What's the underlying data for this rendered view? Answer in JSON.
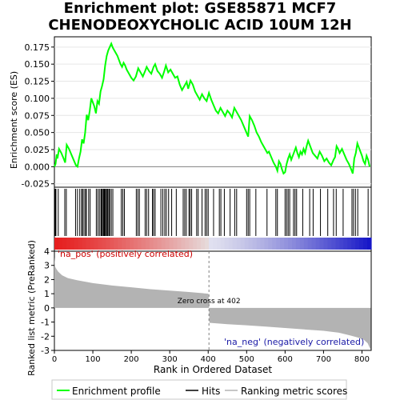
{
  "title_line1": "Enrichment plot: GSE85871 MCF7",
  "title_line2": "CHENODEOXYCHOLIC ACID 10UM 12H",
  "colors": {
    "es_line": "#00ff00",
    "hits": "#000000",
    "metric_fill": "#b3b3b3",
    "pos_label": "#cc0000",
    "neg_label": "#1a1aa6",
    "zero_line": "#808080"
  },
  "chart_data": [
    {
      "type": "line",
      "name": "enrichment-profile",
      "ylabel": "Enrichment score (ES)",
      "xlim": [
        0,
        824
      ],
      "ylim": [
        -0.03,
        0.19
      ],
      "yticks": [
        "0.175",
        "0.150",
        "0.125",
        "0.100",
        "0.075",
        "0.050",
        "0.025",
        "0.000",
        "-0.025"
      ],
      "ytick_values": [
        0.175,
        0.15,
        0.125,
        0.1,
        0.075,
        0.05,
        0.025,
        0.0,
        -0.025
      ],
      "points": [
        [
          0,
          0.0
        ],
        [
          3,
          0.004
        ],
        [
          6,
          0.018
        ],
        [
          8,
          0.012
        ],
        [
          12,
          0.026
        ],
        [
          18,
          0.02
        ],
        [
          24,
          0.012
        ],
        [
          28,
          0.006
        ],
        [
          32,
          0.032
        ],
        [
          38,
          0.026
        ],
        [
          44,
          0.018
        ],
        [
          50,
          0.01
        ],
        [
          56,
          0.002
        ],
        [
          60,
          0.0
        ],
        [
          64,
          0.012
        ],
        [
          68,
          0.022
        ],
        [
          72,
          0.04
        ],
        [
          76,
          0.034
        ],
        [
          80,
          0.05
        ],
        [
          84,
          0.076
        ],
        [
          88,
          0.068
        ],
        [
          92,
          0.082
        ],
        [
          96,
          0.1
        ],
        [
          100,
          0.094
        ],
        [
          104,
          0.088
        ],
        [
          108,
          0.078
        ],
        [
          112,
          0.096
        ],
        [
          116,
          0.092
        ],
        [
          120,
          0.11
        ],
        [
          124,
          0.118
        ],
        [
          128,
          0.128
        ],
        [
          132,
          0.148
        ],
        [
          136,
          0.162
        ],
        [
          140,
          0.17
        ],
        [
          144,
          0.175
        ],
        [
          148,
          0.18
        ],
        [
          152,
          0.174
        ],
        [
          156,
          0.17
        ],
        [
          160,
          0.166
        ],
        [
          164,
          0.162
        ],
        [
          168,
          0.156
        ],
        [
          172,
          0.15
        ],
        [
          176,
          0.146
        ],
        [
          180,
          0.152
        ],
        [
          184,
          0.148
        ],
        [
          188,
          0.142
        ],
        [
          192,
          0.138
        ],
        [
          196,
          0.134
        ],
        [
          200,
          0.13
        ],
        [
          206,
          0.126
        ],
        [
          212,
          0.132
        ],
        [
          218,
          0.144
        ],
        [
          224,
          0.138
        ],
        [
          230,
          0.132
        ],
        [
          236,
          0.14
        ],
        [
          240,
          0.146
        ],
        [
          246,
          0.14
        ],
        [
          252,
          0.136
        ],
        [
          258,
          0.146
        ],
        [
          262,
          0.15
        ],
        [
          268,
          0.14
        ],
        [
          274,
          0.136
        ],
        [
          280,
          0.13
        ],
        [
          286,
          0.14
        ],
        [
          290,
          0.148
        ],
        [
          296,
          0.138
        ],
        [
          302,
          0.142
        ],
        [
          308,
          0.136
        ],
        [
          314,
          0.13
        ],
        [
          320,
          0.132
        ],
        [
          326,
          0.12
        ],
        [
          332,
          0.112
        ],
        [
          338,
          0.118
        ],
        [
          344,
          0.124
        ],
        [
          348,
          0.114
        ],
        [
          354,
          0.126
        ],
        [
          360,
          0.12
        ],
        [
          366,
          0.11
        ],
        [
          372,
          0.104
        ],
        [
          378,
          0.098
        ],
        [
          384,
          0.106
        ],
        [
          390,
          0.1
        ],
        [
          396,
          0.096
        ],
        [
          402,
          0.108
        ],
        [
          408,
          0.098
        ],
        [
          414,
          0.09
        ],
        [
          420,
          0.082
        ],
        [
          426,
          0.078
        ],
        [
          432,
          0.086
        ],
        [
          438,
          0.08
        ],
        [
          444,
          0.074
        ],
        [
          450,
          0.082
        ],
        [
          456,
          0.078
        ],
        [
          462,
          0.072
        ],
        [
          468,
          0.086
        ],
        [
          474,
          0.08
        ],
        [
          480,
          0.074
        ],
        [
          486,
          0.068
        ],
        [
          492,
          0.06
        ],
        [
          498,
          0.052
        ],
        [
          504,
          0.044
        ],
        [
          508,
          0.074
        ],
        [
          514,
          0.068
        ],
        [
          520,
          0.06
        ],
        [
          526,
          0.05
        ],
        [
          532,
          0.044
        ],
        [
          538,
          0.036
        ],
        [
          544,
          0.03
        ],
        [
          550,
          0.024
        ],
        [
          554,
          0.02
        ],
        [
          558,
          0.022
        ],
        [
          564,
          0.014
        ],
        [
          570,
          0.006
        ],
        [
          576,
          0.0
        ],
        [
          580,
          -0.006
        ],
        [
          584,
          0.008
        ],
        [
          588,
          0.004
        ],
        [
          592,
          -0.004
        ],
        [
          596,
          -0.01
        ],
        [
          600,
          -0.008
        ],
        [
          604,
          0.004
        ],
        [
          608,
          0.012
        ],
        [
          612,
          0.018
        ],
        [
          616,
          0.01
        ],
        [
          620,
          0.016
        ],
        [
          624,
          0.022
        ],
        [
          628,
          0.028
        ],
        [
          632,
          0.02
        ],
        [
          636,
          0.014
        ],
        [
          640,
          0.022
        ],
        [
          644,
          0.018
        ],
        [
          648,
          0.026
        ],
        [
          652,
          0.02
        ],
        [
          656,
          0.03
        ],
        [
          660,
          0.038
        ],
        [
          664,
          0.032
        ],
        [
          668,
          0.026
        ],
        [
          672,
          0.02
        ],
        [
          678,
          0.016
        ],
        [
          684,
          0.012
        ],
        [
          690,
          0.022
        ],
        [
          696,
          0.016
        ],
        [
          702,
          0.008
        ],
        [
          708,
          0.012
        ],
        [
          714,
          0.006
        ],
        [
          720,
          0.002
        ],
        [
          726,
          0.01
        ],
        [
          730,
          0.014
        ],
        [
          734,
          0.03
        ],
        [
          738,
          0.026
        ],
        [
          742,
          0.02
        ],
        [
          748,
          0.026
        ],
        [
          754,
          0.018
        ],
        [
          760,
          0.01
        ],
        [
          766,
          0.004
        ],
        [
          772,
          -0.004
        ],
        [
          776,
          -0.01
        ],
        [
          780,
          0.012
        ],
        [
          784,
          0.02
        ],
        [
          788,
          0.034
        ],
        [
          792,
          0.028
        ],
        [
          796,
          0.022
        ],
        [
          800,
          0.016
        ],
        [
          804,
          0.008
        ],
        [
          808,
          0.004
        ],
        [
          812,
          0.016
        ],
        [
          816,
          0.01
        ],
        [
          820,
          0.0
        ]
      ]
    },
    {
      "type": "bar",
      "name": "hits",
      "hit_positions": [
        2,
        4,
        10,
        27,
        31,
        55,
        60,
        66,
        71,
        73,
        77,
        81,
        83,
        89,
        93,
        109,
        113,
        117,
        121,
        123,
        125,
        128,
        130,
        132,
        135,
        137,
        139,
        142,
        144,
        148,
        152,
        174,
        178,
        182,
        213,
        217,
        221,
        236,
        240,
        245,
        255,
        258,
        262,
        277,
        282,
        287,
        291,
        297,
        305,
        317,
        335,
        339,
        343,
        350,
        353,
        357,
        370,
        374,
        384,
        392,
        396,
        400,
        414,
        429,
        433,
        442,
        457,
        469,
        474,
        500,
        504,
        508,
        524,
        553,
        576,
        580,
        600,
        604,
        608,
        612,
        622,
        626,
        630,
        646,
        664,
        673,
        692,
        711,
        726,
        733,
        751,
        774,
        778,
        783,
        789,
        816
      ]
    },
    {
      "type": "area",
      "name": "ranked-list-metric",
      "xlabel": "Rank in Ordered Dataset",
      "ylabel": "Ranked list metric (PreRanked)",
      "xlim": [
        0,
        824
      ],
      "ylim": [
        -3,
        4
      ],
      "xticks": [
        "0",
        "100",
        "200",
        "300",
        "400",
        "500",
        "600",
        "700",
        "800"
      ],
      "xtick_values": [
        0,
        100,
        200,
        300,
        400,
        500,
        600,
        700,
        800
      ],
      "yticks": [
        "4",
        "3",
        "2",
        "1",
        "0",
        "-1",
        "-2",
        "-3"
      ],
      "ytick_values": [
        4,
        3,
        2,
        1,
        0,
        -1,
        -2,
        -3
      ],
      "points": [
        [
          0,
          3.6
        ],
        [
          2,
          2.9
        ],
        [
          5,
          2.75
        ],
        [
          10,
          2.55
        ],
        [
          20,
          2.3
        ],
        [
          35,
          2.1
        ],
        [
          60,
          1.95
        ],
        [
          100,
          1.75
        ],
        [
          150,
          1.58
        ],
        [
          200,
          1.45
        ],
        [
          250,
          1.32
        ],
        [
          300,
          1.22
        ],
        [
          350,
          1.12
        ],
        [
          400,
          1.0
        ],
        [
          401,
          0.95
        ],
        [
          402,
          0.0
        ],
        [
          403,
          -1.05
        ],
        [
          450,
          -1.15
        ],
        [
          500,
          -1.23
        ],
        [
          550,
          -1.32
        ],
        [
          600,
          -1.42
        ],
        [
          650,
          -1.52
        ],
        [
          700,
          -1.62
        ],
        [
          740,
          -1.75
        ],
        [
          770,
          -1.95
        ],
        [
          790,
          -2.1
        ],
        [
          805,
          -2.25
        ],
        [
          815,
          -2.5
        ],
        [
          820,
          -2.8
        ],
        [
          823,
          -2.95
        ]
      ],
      "zero_cross": 402,
      "zero_cross_label": "Zero cross at 402",
      "pos_label": "'na_pos' (positively correlated)",
      "neg_label": "'na_neg' (negatively correlated)"
    }
  ],
  "legend": {
    "items": [
      {
        "label": "Enrichment profile",
        "color": "#00ff00"
      },
      {
        "label": "Hits",
        "color": "#000000"
      },
      {
        "label": "Ranking metric scores",
        "color": "#b3b3b3"
      }
    ]
  }
}
